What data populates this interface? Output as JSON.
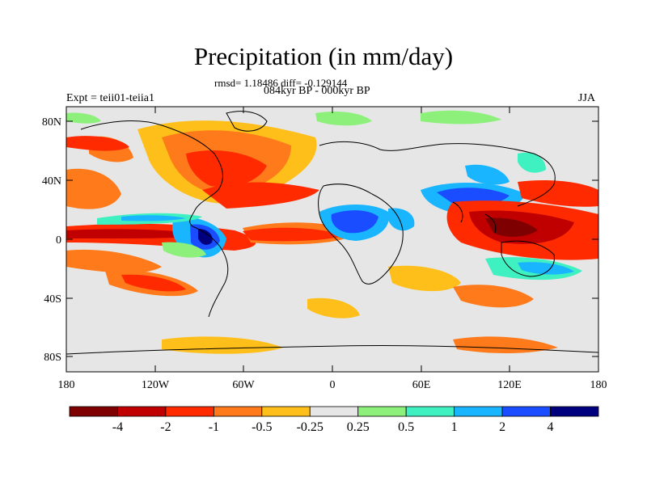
{
  "title": "Precipitation (in mm/day)",
  "stats": "rmsd= 1.18486  diff= -0.129144",
  "period": "084kyr BP - 000kyr BP",
  "experiment": "Expt = teii01-teiia1",
  "season": "JJA",
  "lon_ticks": [
    "180",
    "120W",
    "60W",
    "0",
    "60E",
    "120E",
    "180"
  ],
  "lat_ticks": [
    "80N",
    "40N",
    "0",
    "40S",
    "80S"
  ],
  "colorbar": {
    "colors": [
      "#7f0000",
      "#c00000",
      "#ff2a00",
      "#ff7a1a",
      "#ffbf1a",
      "#e6e6e6",
      "#8cf07a",
      "#3ff0c0",
      "#19b6ff",
      "#1a4dff",
      "#00007f"
    ],
    "labels": [
      "-4",
      "-2",
      "-1",
      "-0.5",
      "-0.25",
      "0.25",
      "0.5",
      "1",
      "2",
      "4"
    ]
  }
}
